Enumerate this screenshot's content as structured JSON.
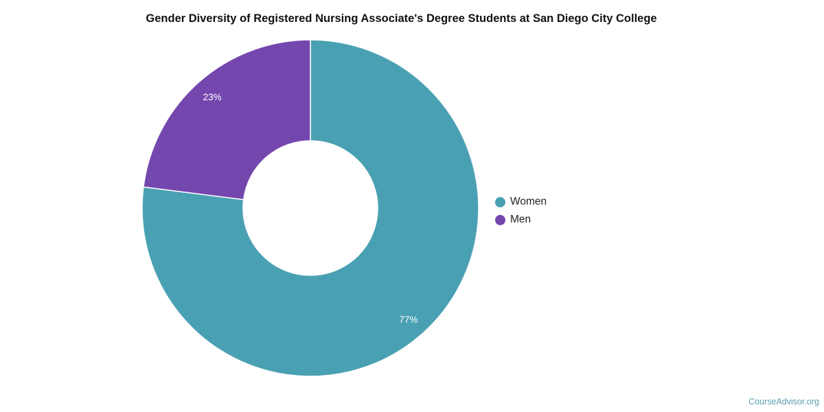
{
  "chart_data": {
    "type": "pie",
    "subtype": "donut",
    "title": "Gender Diversity of Registered Nursing Associate's Degree Students at San Diego City College",
    "slices": [
      {
        "label": "Women",
        "value": 77,
        "display": "77%",
        "color": "#4aa0b3"
      },
      {
        "label": "Men",
        "value": 23,
        "display": "23%",
        "color": "#7447ae"
      }
    ],
    "legend_position": "right"
  },
  "credit": "CourseAdvisor.org"
}
